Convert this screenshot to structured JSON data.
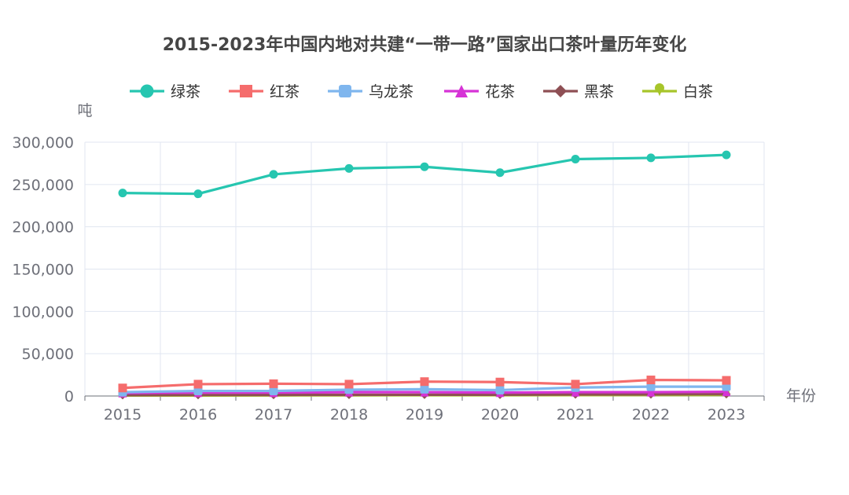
{
  "chart_data": {
    "type": "line",
    "title": "2015-2023年中国内地对共建“一带一路”国家出口茶叶量历年变化",
    "xlabel": "年份",
    "ylabel": "吨",
    "categories": [
      "2015",
      "2016",
      "2017",
      "2018",
      "2019",
      "2020",
      "2021",
      "2022",
      "2023"
    ],
    "ylim": [
      0,
      300000
    ],
    "yticks": [
      0,
      50000,
      100000,
      150000,
      200000,
      250000,
      300000
    ],
    "ytick_labels": [
      "0",
      "50,000",
      "100,000",
      "150,000",
      "200,000",
      "250,000",
      "300,000"
    ],
    "grid": true,
    "legend_position": "top-center",
    "series": [
      {
        "name": "绿茶",
        "color": "#26c6b0",
        "marker": "circle",
        "values": [
          240000,
          239000,
          262000,
          269000,
          271000,
          264000,
          280000,
          281500,
          285000
        ]
      },
      {
        "name": "红茶",
        "color": "#f56c6c",
        "marker": "square",
        "values": [
          9500,
          14000,
          14500,
          14000,
          17000,
          16500,
          14000,
          19000,
          18500
        ]
      },
      {
        "name": "乌龙茶",
        "color": "#7fb6ee",
        "marker": "roundRect",
        "values": [
          4500,
          6000,
          6000,
          7500,
          8000,
          7000,
          10000,
          11000,
          11000
        ]
      },
      {
        "name": "花茶",
        "color": "#d633d6",
        "marker": "triangle",
        "values": [
          3500,
          4000,
          4000,
          4500,
          4500,
          4000,
          4500,
          4500,
          5000
        ]
      },
      {
        "name": "黑茶",
        "color": "#8e4f54",
        "marker": "diamond",
        "values": [
          1000,
          1200,
          1300,
          1400,
          1500,
          1500,
          1800,
          2000,
          2200
        ]
      },
      {
        "name": "白茶",
        "color": "#a7c52a",
        "marker": "pin",
        "values": [
          500,
          600,
          700,
          800,
          900,
          900,
          1000,
          1100,
          1200
        ]
      }
    ]
  }
}
